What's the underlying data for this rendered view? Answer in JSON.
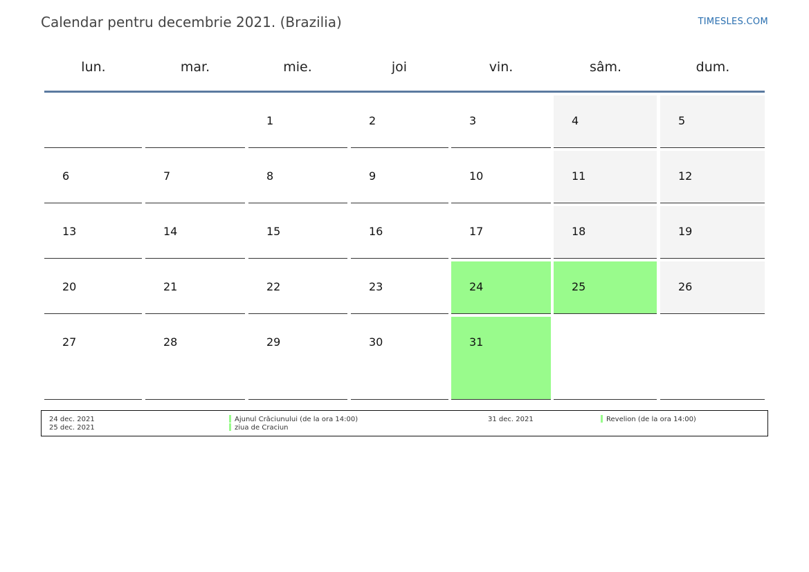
{
  "page": {
    "title": "Calendar pentru decembrie 2021. (Brazilia)",
    "brand": "TIMESLES.COM"
  },
  "colors": {
    "weekend_bg": "#f4f4f4",
    "holiday_bg": "#99fb8c",
    "header_rule": "#5b7aa0",
    "brand": "#2a6fb0"
  },
  "weekdays": [
    "lun.",
    "mar.",
    "mie.",
    "joi",
    "vin.",
    "sâm.",
    "dum."
  ],
  "weeks": [
    [
      {
        "day": "",
        "type": "empty"
      },
      {
        "day": "",
        "type": "empty"
      },
      {
        "day": "1",
        "type": "normal"
      },
      {
        "day": "2",
        "type": "normal"
      },
      {
        "day": "3",
        "type": "normal"
      },
      {
        "day": "4",
        "type": "weekend"
      },
      {
        "day": "5",
        "type": "weekend"
      }
    ],
    [
      {
        "day": "6",
        "type": "normal"
      },
      {
        "day": "7",
        "type": "normal"
      },
      {
        "day": "8",
        "type": "normal"
      },
      {
        "day": "9",
        "type": "normal"
      },
      {
        "day": "10",
        "type": "normal"
      },
      {
        "day": "11",
        "type": "weekend"
      },
      {
        "day": "12",
        "type": "weekend"
      }
    ],
    [
      {
        "day": "13",
        "type": "normal"
      },
      {
        "day": "14",
        "type": "normal"
      },
      {
        "day": "15",
        "type": "normal"
      },
      {
        "day": "16",
        "type": "normal"
      },
      {
        "day": "17",
        "type": "normal"
      },
      {
        "day": "18",
        "type": "weekend"
      },
      {
        "day": "19",
        "type": "weekend"
      }
    ],
    [
      {
        "day": "20",
        "type": "normal"
      },
      {
        "day": "21",
        "type": "normal"
      },
      {
        "day": "22",
        "type": "normal"
      },
      {
        "day": "23",
        "type": "normal"
      },
      {
        "day": "24",
        "type": "holiday"
      },
      {
        "day": "25",
        "type": "holiday"
      },
      {
        "day": "26",
        "type": "weekend"
      }
    ],
    [
      {
        "day": "27",
        "type": "normal"
      },
      {
        "day": "28",
        "type": "normal"
      },
      {
        "day": "29",
        "type": "normal"
      },
      {
        "day": "30",
        "type": "normal"
      },
      {
        "day": "31",
        "type": "holiday"
      },
      {
        "day": "",
        "type": "blank"
      },
      {
        "day": "",
        "type": "blank"
      }
    ]
  ],
  "legend": [
    {
      "date": "24 dec. 2021",
      "label": "Ajunul Crăciunului (de la ora 14:00)"
    },
    {
      "date": "25 dec. 2021",
      "label": "ziua de Craciun"
    },
    {
      "date": "31 dec. 2021",
      "label": "Revelion (de la ora 14:00)"
    }
  ]
}
